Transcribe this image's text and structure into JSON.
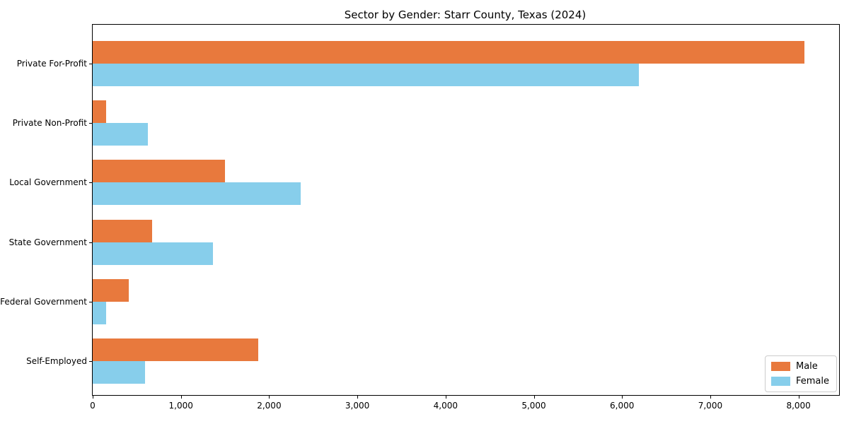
{
  "title": "Sector by Gender: Starr County, Texas (2024)",
  "chart_data": {
    "type": "bar",
    "orientation": "horizontal",
    "title": "Sector by Gender: Starr County, Texas (2024)",
    "categories": [
      "Private For-Profit",
      "Private Non-Profit",
      "Local Government",
      "State Government",
      "Federal Government",
      "Self-Employed"
    ],
    "series": [
      {
        "name": "Male",
        "color": "#e8793d",
        "values": [
          8070,
          150,
          1500,
          675,
          405,
          1880
        ]
      },
      {
        "name": "Female",
        "color": "#87ceeb",
        "values": [
          6190,
          625,
          2355,
          1360,
          150,
          590
        ]
      }
    ],
    "xlabel": "",
    "ylabel": "",
    "xlim": [
      0,
      8460
    ],
    "x_ticks": [
      0,
      1000,
      2000,
      3000,
      4000,
      5000,
      6000,
      7000,
      8000
    ],
    "x_tick_labels": [
      "0",
      "1,000",
      "2,000",
      "3,000",
      "4,000",
      "5,000",
      "6,000",
      "7,000",
      "8,000"
    ],
    "grid": false,
    "legend_position": "lower right"
  },
  "colors": {
    "male": "#e8793d",
    "female": "#87ceeb",
    "spine": "#000000",
    "legend_border": "#cccccc"
  }
}
